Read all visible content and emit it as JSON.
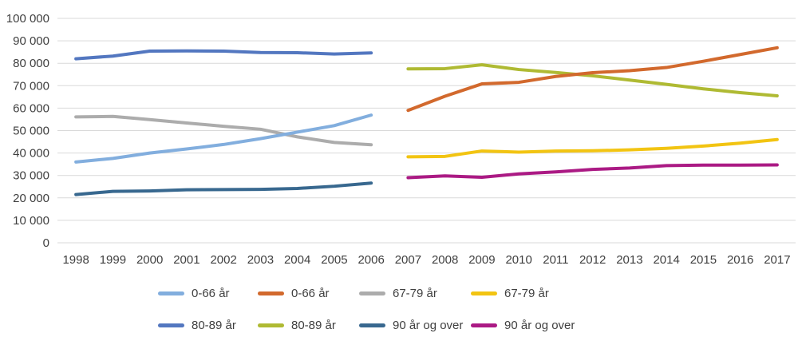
{
  "chart_data": {
    "type": "line",
    "categories": [
      "1998",
      "1999",
      "2000",
      "2001",
      "2002",
      "2003",
      "2004",
      "2005",
      "2006",
      "2007",
      "2008",
      "2009",
      "2010",
      "2011",
      "2012",
      "2013",
      "2014",
      "2015",
      "2016",
      "2017"
    ],
    "ylim": [
      0,
      100000
    ],
    "ytick_values": [
      0,
      10000,
      20000,
      30000,
      40000,
      50000,
      60000,
      70000,
      80000,
      90000,
      100000
    ],
    "ytick_labels": [
      "0",
      "10 000",
      "20 000",
      "30 000",
      "40 000",
      "50 000",
      "60 000",
      "70 000",
      "80 000",
      "90 000",
      "100 000"
    ],
    "grid": true,
    "grid_color": "#D9D9D9",
    "text_color": "#404040",
    "legend_position": "bottom",
    "series": [
      {
        "name": "0-66 år",
        "years": "1998-2006",
        "color": "#82AEDE",
        "start_index": 0,
        "values": [
          36000,
          37600,
          40000,
          41800,
          43800,
          46400,
          49300,
          52200,
          56900
        ]
      },
      {
        "name": "0-66 år",
        "years": "2007-2017",
        "color": "#D2692D",
        "start_index": 9,
        "values": [
          59000,
          65300,
          70800,
          71500,
          74100,
          75800,
          76700,
          78100,
          80900,
          83900,
          86900
        ]
      },
      {
        "name": "67-79 år",
        "years": "1998-2006",
        "color": "#ACACAC",
        "start_index": 0,
        "values": [
          56100,
          56300,
          54900,
          53400,
          51900,
          50600,
          47200,
          44700,
          43700
        ]
      },
      {
        "name": "67-79 år",
        "years": "2007-2017",
        "color": "#F2C412",
        "start_index": 9,
        "values": [
          38300,
          38500,
          40900,
          40400,
          40900,
          41000,
          41400,
          42100,
          43100,
          44400,
          46000
        ]
      },
      {
        "name": "80-89 år",
        "years": "1998-2006",
        "color": "#5377C0",
        "start_index": 0,
        "values": [
          82000,
          83200,
          85400,
          85500,
          85400,
          84800,
          84700,
          84100,
          84600
        ]
      },
      {
        "name": "80-89 år",
        "years": "2007-2017",
        "color": "#AFBA33",
        "start_index": 9,
        "values": [
          77500,
          77600,
          79300,
          77200,
          75900,
          74400,
          72500,
          70600,
          68600,
          66900,
          65500
        ]
      },
      {
        "name": "90 år og over",
        "years": "1998-2006",
        "color": "#38688F",
        "start_index": 0,
        "values": [
          21500,
          22900,
          23100,
          23600,
          23700,
          23800,
          24200,
          25200,
          26600
        ]
      },
      {
        "name": "90 år og over",
        "years": "2007-2017",
        "color": "#AB1A84",
        "start_index": 9,
        "values": [
          29000,
          29800,
          29200,
          30700,
          31600,
          32700,
          33300,
          34400,
          34600,
          34600,
          34700
        ]
      }
    ]
  }
}
